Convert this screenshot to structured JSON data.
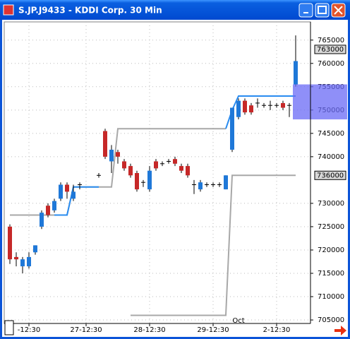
{
  "chart_data": {
    "type": "candlestick",
    "title": "S.JP.J9433 - KDDI Corp. 30 Min",
    "categories": [
      null,
      null,
      null,
      "-12:30",
      null,
      null,
      null,
      null,
      null,
      null,
      null,
      null,
      "27-12:30",
      null,
      null,
      null,
      null,
      null,
      null,
      null,
      null,
      null,
      "28-12:30",
      null,
      null,
      null,
      null,
      null,
      null,
      null,
      null,
      null,
      "29-12:30",
      null,
      null,
      null,
      null,
      null,
      null,
      null,
      null,
      null,
      "2-12:30",
      null,
      null,
      null
    ],
    "open": [
      725000,
      718500,
      716500,
      716500,
      719500,
      725000,
      729500,
      728500,
      731000,
      734000,
      731000,
      734000,
      null,
      null,
      736000,
      745500,
      739000,
      741000,
      739000,
      738000,
      736500,
      734500,
      733000,
      739000,
      738500,
      739000,
      739500,
      738000,
      738000,
      734000,
      733000,
      734000,
      734000,
      734000,
      733000,
      741500,
      748500,
      752000,
      751000,
      751500,
      751000,
      751000,
      751000,
      751500,
      751000,
      755500
    ],
    "high": [
      725500,
      719500,
      718500,
      719500,
      721000,
      728500,
      730000,
      731000,
      734500,
      734500,
      734000,
      734500,
      null,
      null,
      736500,
      746000,
      742500,
      741500,
      739500,
      738500,
      737000,
      735000,
      738000,
      739500,
      739000,
      739500,
      740000,
      738500,
      738500,
      735000,
      735000,
      734500,
      734500,
      734500,
      736000,
      750500,
      752500,
      752500,
      751500,
      752500,
      751500,
      752000,
      751500,
      752000,
      751500,
      766000
    ],
    "low": [
      717000,
      716500,
      715000,
      716000,
      719000,
      724500,
      727000,
      728000,
      730500,
      731000,
      730500,
      733000,
      null,
      null,
      735500,
      739500,
      736500,
      738500,
      737000,
      735500,
      732500,
      733500,
      732500,
      737000,
      738000,
      738500,
      738000,
      736500,
      735500,
      732000,
      732500,
      733500,
      733500,
      733500,
      733000,
      741000,
      748000,
      749000,
      749000,
      750500,
      750500,
      750000,
      750500,
      750000,
      748500,
      755000
    ],
    "close": [
      718000,
      718000,
      718000,
      718500,
      721000,
      728000,
      727500,
      730500,
      734000,
      732500,
      732500,
      734000,
      null,
      null,
      736000,
      740000,
      741500,
      740000,
      737500,
      736000,
      733000,
      734500,
      737000,
      737500,
      738500,
      739000,
      738500,
      737000,
      736000,
      734000,
      734500,
      734000,
      734000,
      734000,
      736000,
      750500,
      752000,
      749500,
      749500,
      751500,
      751000,
      751000,
      751000,
      750500,
      751000,
      760500
    ],
    "up_color": "#1f78d8",
    "down_color": "#c62828",
    "lines": [
      {
        "color": "#a8a8a8",
        "values": [
          727500,
          727500,
          727500,
          727500,
          727500,
          727500,
          727500,
          727500,
          727500,
          727500,
          733500,
          733500,
          733500,
          733500,
          733500,
          733500,
          733500,
          746000,
          746000,
          746000,
          746000,
          746000,
          746000,
          746000,
          746000,
          746000,
          746000,
          746000,
          746000,
          746000,
          746000,
          746000,
          746000,
          746000,
          746000,
          null,
          null,
          null,
          null,
          null,
          null,
          null,
          null,
          null,
          null,
          null
        ]
      },
      {
        "color": "#a8a8a8",
        "values": [
          null,
          null,
          null,
          null,
          null,
          null,
          null,
          null,
          null,
          null,
          null,
          null,
          null,
          null,
          null,
          null,
          null,
          null,
          null,
          706000,
          706000,
          706000,
          706000,
          706000,
          706000,
          706000,
          706000,
          706000,
          706000,
          706000,
          706000,
          706000,
          706000,
          706000,
          706000,
          736000,
          736000,
          736000,
          736000,
          736000,
          736000,
          736000,
          736000,
          736000,
          736000,
          736000
        ]
      },
      {
        "color": "#2a8cf0",
        "values": [
          null,
          null,
          null,
          null,
          null,
          null,
          null,
          727500,
          727500,
          727500,
          733500,
          733500,
          733500,
          733500,
          733500,
          null,
          null,
          null,
          null,
          null,
          null,
          null,
          null,
          null,
          null,
          null,
          null,
          null,
          null,
          null,
          null,
          null,
          null,
          null,
          746000,
          750000,
          753000,
          753000,
          753000,
          753000,
          753000,
          753000,
          753000,
          753000,
          753000,
          753000
        ]
      }
    ],
    "ylim": [
      704250,
      768900
    ],
    "yticks": [
      705000,
      710000,
      715000,
      720000,
      725000,
      730000,
      740000,
      745000,
      750000,
      755000,
      760000,
      765000
    ],
    "price_markers": [
      763000,
      736000
    ],
    "band": {
      "from": 748000,
      "to": 755500,
      "color": "#6a6af5"
    },
    "annotation": {
      "text": "Oct",
      "index": 36
    },
    "grid": true
  }
}
